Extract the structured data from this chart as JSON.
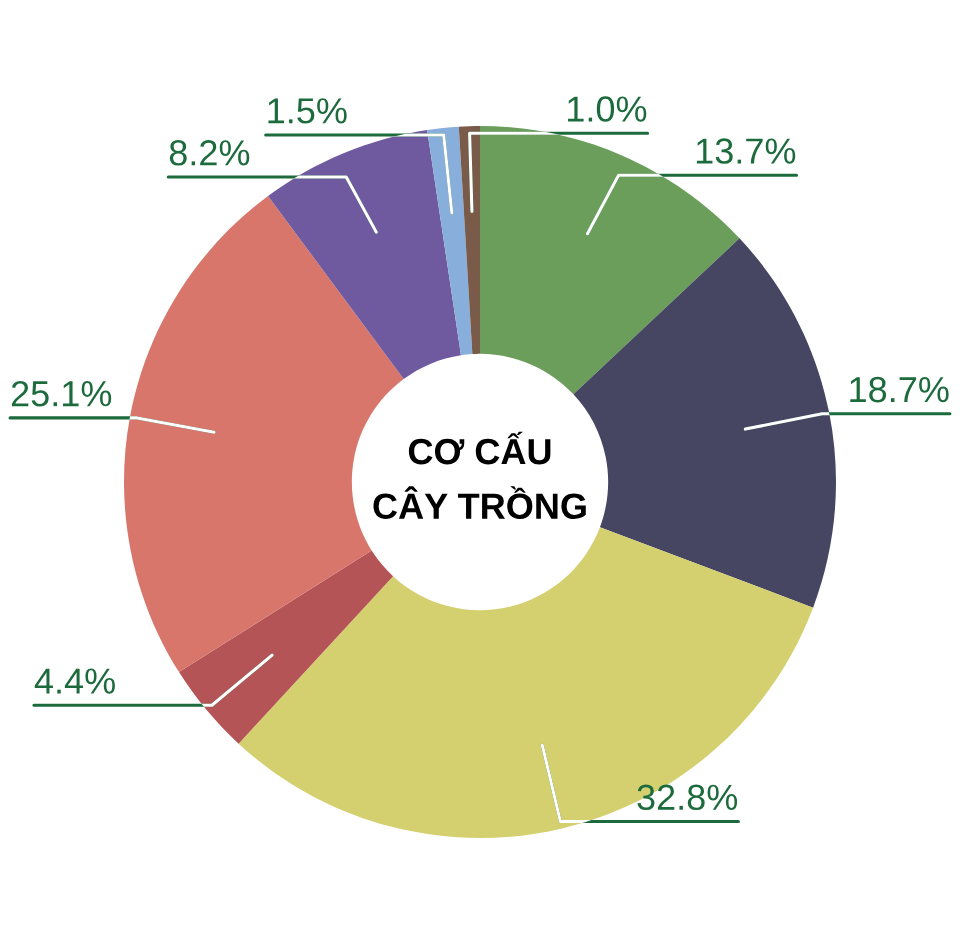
{
  "chart_data": {
    "type": "donut",
    "title": "CƠ CẤU\nCÂY TRỒNG",
    "categories": [
      null,
      null,
      null,
      null,
      null,
      null,
      null,
      null
    ],
    "values": [
      13.7,
      18.7,
      32.8,
      4.4,
      25.1,
      8.2,
      1.5,
      1.0
    ],
    "colors": [
      "#6a9e5a",
      "#464662",
      "#d4d070",
      "#b55457",
      "#d8766c",
      "#6f5aa0",
      "#88aedb",
      "#7a5a48"
    ],
    "value_labels": [
      "13.7%",
      "18.7%",
      "32.8%",
      "4.4%",
      "25.1%",
      "8.2%",
      "1.5%",
      "1.0%"
    ]
  }
}
